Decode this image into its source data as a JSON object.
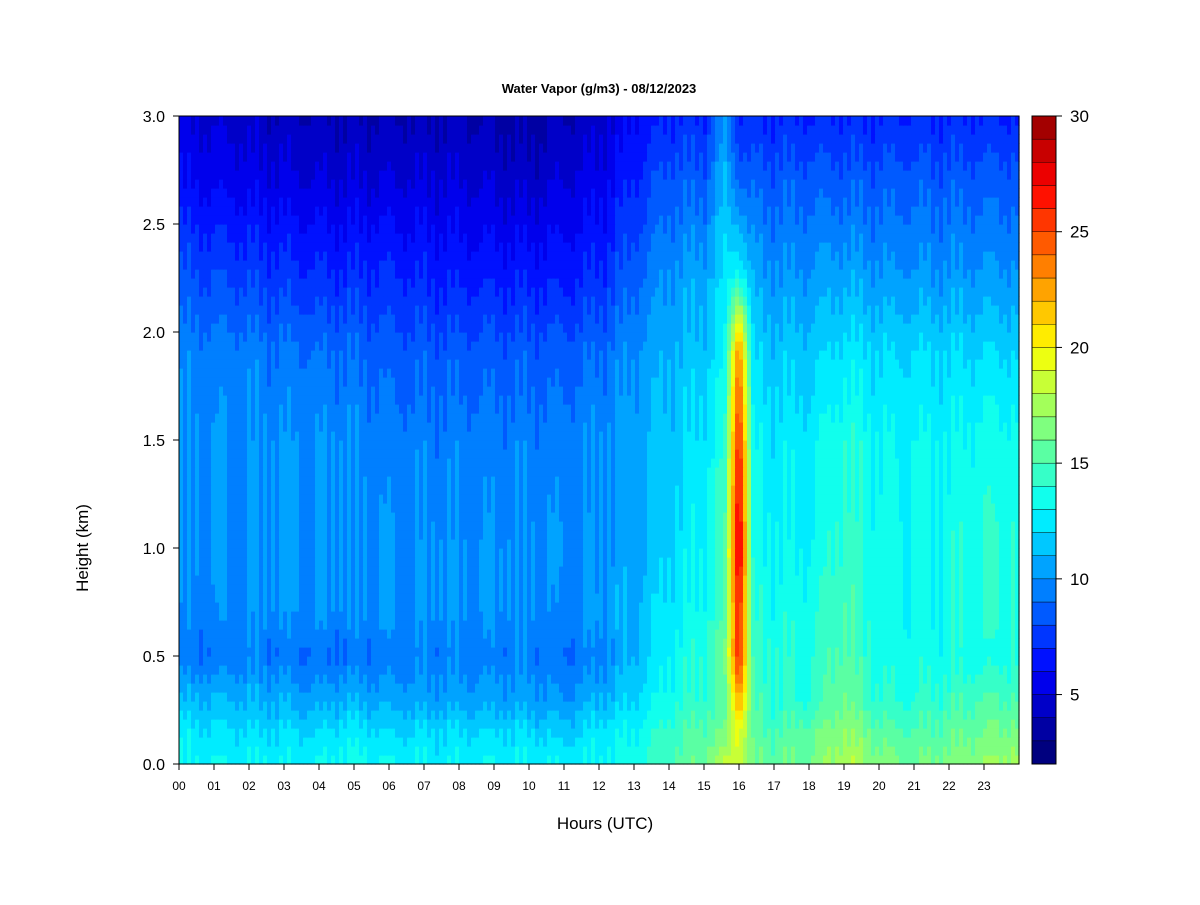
{
  "chart_data": {
    "type": "heatmap",
    "title": "Water Vapor (g/m3) - 08/12/2023",
    "xlabel": "Hours (UTC)",
    "ylabel": "Height (km)",
    "xlim": [
      0,
      24
    ],
    "ylim": [
      0,
      3
    ],
    "x_ticks": [
      "00",
      "01",
      "02",
      "03",
      "04",
      "05",
      "06",
      "07",
      "08",
      "09",
      "10",
      "11",
      "12",
      "13",
      "14",
      "15",
      "16",
      "17",
      "18",
      "19",
      "20",
      "21",
      "22",
      "23"
    ],
    "y_ticks": [
      "0.0",
      "0.5",
      "1.0",
      "1.5",
      "2.0",
      "2.5",
      "3.0"
    ],
    "colorbar": {
      "min": 2,
      "max": 30,
      "step": 1,
      "ticks": [
        "5",
        "10",
        "15",
        "20",
        "25",
        "30"
      ],
      "colors": [
        "#00007f",
        "#0000a3",
        "#0000c8",
        "#0000ec",
        "#0011ff",
        "#0036ff",
        "#005aff",
        "#007fff",
        "#00a3ff",
        "#00c8ff",
        "#00ecff",
        "#11ffed",
        "#36ffc8",
        "#5affa3",
        "#7fff7f",
        "#a3ff5a",
        "#c8ff36",
        "#edff11",
        "#ffec00",
        "#ffc800",
        "#ffa300",
        "#ff7f00",
        "#ff5a00",
        "#ff3600",
        "#ff1100",
        "#ec0000",
        "#c80000",
        "#a30000"
      ]
    },
    "profile_heights_km": [
      0.0,
      0.15,
      0.3,
      0.5,
      0.7,
      1.0,
      1.5,
      1.9,
      2.3,
      2.7,
      3.0
    ],
    "profiles": [
      {
        "hour": 0.0,
        "values": [
          13,
          12.5,
          11,
          9,
          9.5,
          10,
          10,
          9.5,
          8,
          6,
          5
        ]
      },
      {
        "hour": 2.0,
        "values": [
          13,
          12,
          11,
          9.5,
          10,
          10,
          10,
          9.5,
          7.5,
          5.5,
          4.5
        ]
      },
      {
        "hour": 4.0,
        "values": [
          13,
          12,
          10.5,
          9,
          10,
          10,
          10,
          9,
          7,
          5,
          4
        ]
      },
      {
        "hour": 4.8,
        "values": [
          13.5,
          12.5,
          11,
          9,
          10,
          10,
          10,
          9,
          7,
          5,
          4
        ]
      },
      {
        "hour": 6.0,
        "values": [
          13,
          12,
          10.5,
          9.5,
          10,
          10,
          9.5,
          8.5,
          7,
          5,
          4
        ]
      },
      {
        "hour": 8.0,
        "values": [
          13,
          12,
          10.5,
          9.5,
          10,
          10,
          9.5,
          8.5,
          6.5,
          5,
          4
        ]
      },
      {
        "hour": 10.0,
        "values": [
          13,
          12,
          10.5,
          9.5,
          10,
          10,
          9.5,
          8.5,
          6.5,
          4.5,
          3.5
        ]
      },
      {
        "hour": 11.0,
        "values": [
          13,
          11.5,
          10,
          9,
          9.5,
          10,
          9.5,
          8.5,
          6.5,
          5,
          4
        ]
      },
      {
        "hour": 12.0,
        "values": [
          13,
          12.5,
          11,
          9.5,
          10.5,
          10,
          10,
          9,
          7,
          5.5,
          4.5
        ]
      },
      {
        "hour": 13.0,
        "values": [
          13.5,
          13,
          12,
          11,
          11,
          10.5,
          10.5,
          10,
          8.5,
          7,
          6
        ]
      },
      {
        "hour": 14.0,
        "values": [
          15,
          14.5,
          13.5,
          13,
          12.5,
          12,
          11.5,
          11,
          10,
          8.5,
          7
        ]
      },
      {
        "hour": 15.0,
        "values": [
          16,
          15.5,
          14.5,
          14,
          13.5,
          13,
          12.5,
          11.5,
          10.5,
          8.5,
          7
        ]
      },
      {
        "hour": 15.6,
        "values": [
          18,
          16,
          15,
          16,
          15,
          15,
          14,
          13,
          12,
          11,
          10
        ]
      },
      {
        "hour": 16.0,
        "values": [
          19,
          20,
          23,
          27,
          27,
          29,
          27,
          24,
          13,
          9,
          7
        ]
      },
      {
        "hour": 16.4,
        "values": [
          16,
          15.5,
          15,
          14.5,
          14,
          13.5,
          13,
          12,
          10.5,
          8.5,
          7
        ]
      },
      {
        "hour": 17.0,
        "values": [
          16,
          15,
          14,
          14,
          13.5,
          13,
          12.5,
          11.5,
          10,
          8.5,
          7
        ]
      },
      {
        "hour": 18.0,
        "values": [
          16,
          15.5,
          14,
          14,
          13.5,
          13,
          12.5,
          11.5,
          10,
          8.5,
          7
        ]
      },
      {
        "hour": 19.0,
        "values": [
          18,
          17,
          16,
          15.5,
          15,
          14.5,
          14,
          12.5,
          10.5,
          8.5,
          7
        ]
      },
      {
        "hour": 20.0,
        "values": [
          16.5,
          15.5,
          14,
          13.5,
          13.5,
          13.5,
          13,
          12,
          10,
          8.5,
          7
        ]
      },
      {
        "hour": 21.0,
        "values": [
          16,
          15,
          14,
          13.5,
          13,
          13,
          13,
          12,
          10,
          8.5,
          7
        ]
      },
      {
        "hour": 22.0,
        "values": [
          16.5,
          15.5,
          14.5,
          13.5,
          13.5,
          13.5,
          13,
          12,
          10,
          8.5,
          7
        ]
      },
      {
        "hour": 23.0,
        "values": [
          17,
          16,
          15,
          13.5,
          14,
          14,
          13.5,
          12,
          10,
          8.5,
          7
        ]
      },
      {
        "hour": 24.0,
        "values": [
          17.5,
          16.5,
          15,
          14,
          14,
          14,
          13.5,
          12,
          10,
          8.5,
          7
        ]
      }
    ]
  }
}
